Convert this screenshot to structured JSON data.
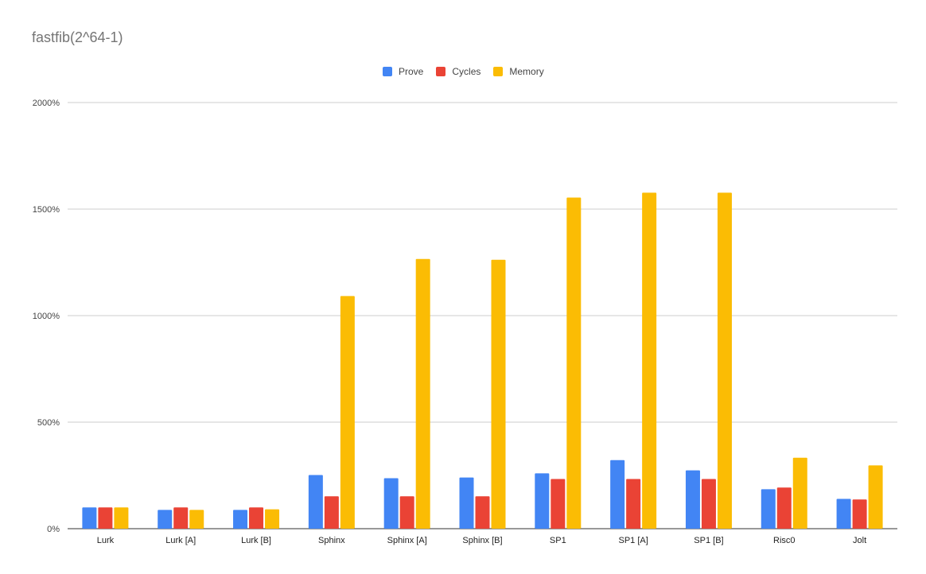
{
  "chart_data": {
    "type": "bar",
    "title": "fastfib(2^64-1)",
    "categories": [
      "Lurk",
      "Lurk [A]",
      "Lurk [B]",
      "Sphinx",
      "Sphinx [A]",
      "Sphinx [B]",
      "SP1",
      "SP1 [A]",
      "SP1 [B]",
      "Risc0",
      "Jolt"
    ],
    "series": [
      {
        "name": "Prove",
        "color": "#4285F4",
        "values": [
          100,
          88,
          88,
          252,
          237,
          240,
          260,
          322,
          274,
          185,
          140
        ]
      },
      {
        "name": "Cycles",
        "color": "#EA4335",
        "values": [
          100,
          100,
          100,
          152,
          152,
          152,
          233,
          233,
          233,
          193,
          137
        ]
      },
      {
        "name": "Memory",
        "color": "#FBBC04",
        "values": [
          100,
          88,
          91,
          1092,
          1266,
          1262,
          1554,
          1577,
          1577,
          333,
          297
        ]
      }
    ],
    "ylim": [
      0,
      2000
    ],
    "yticks": [
      0,
      500,
      1000,
      1500,
      2000
    ],
    "ytick_labels": [
      "0%",
      "500%",
      "1000%",
      "1500%",
      "2000%"
    ],
    "grid": true,
    "legend_position": "top-center",
    "xlabel": "",
    "ylabel": ""
  }
}
